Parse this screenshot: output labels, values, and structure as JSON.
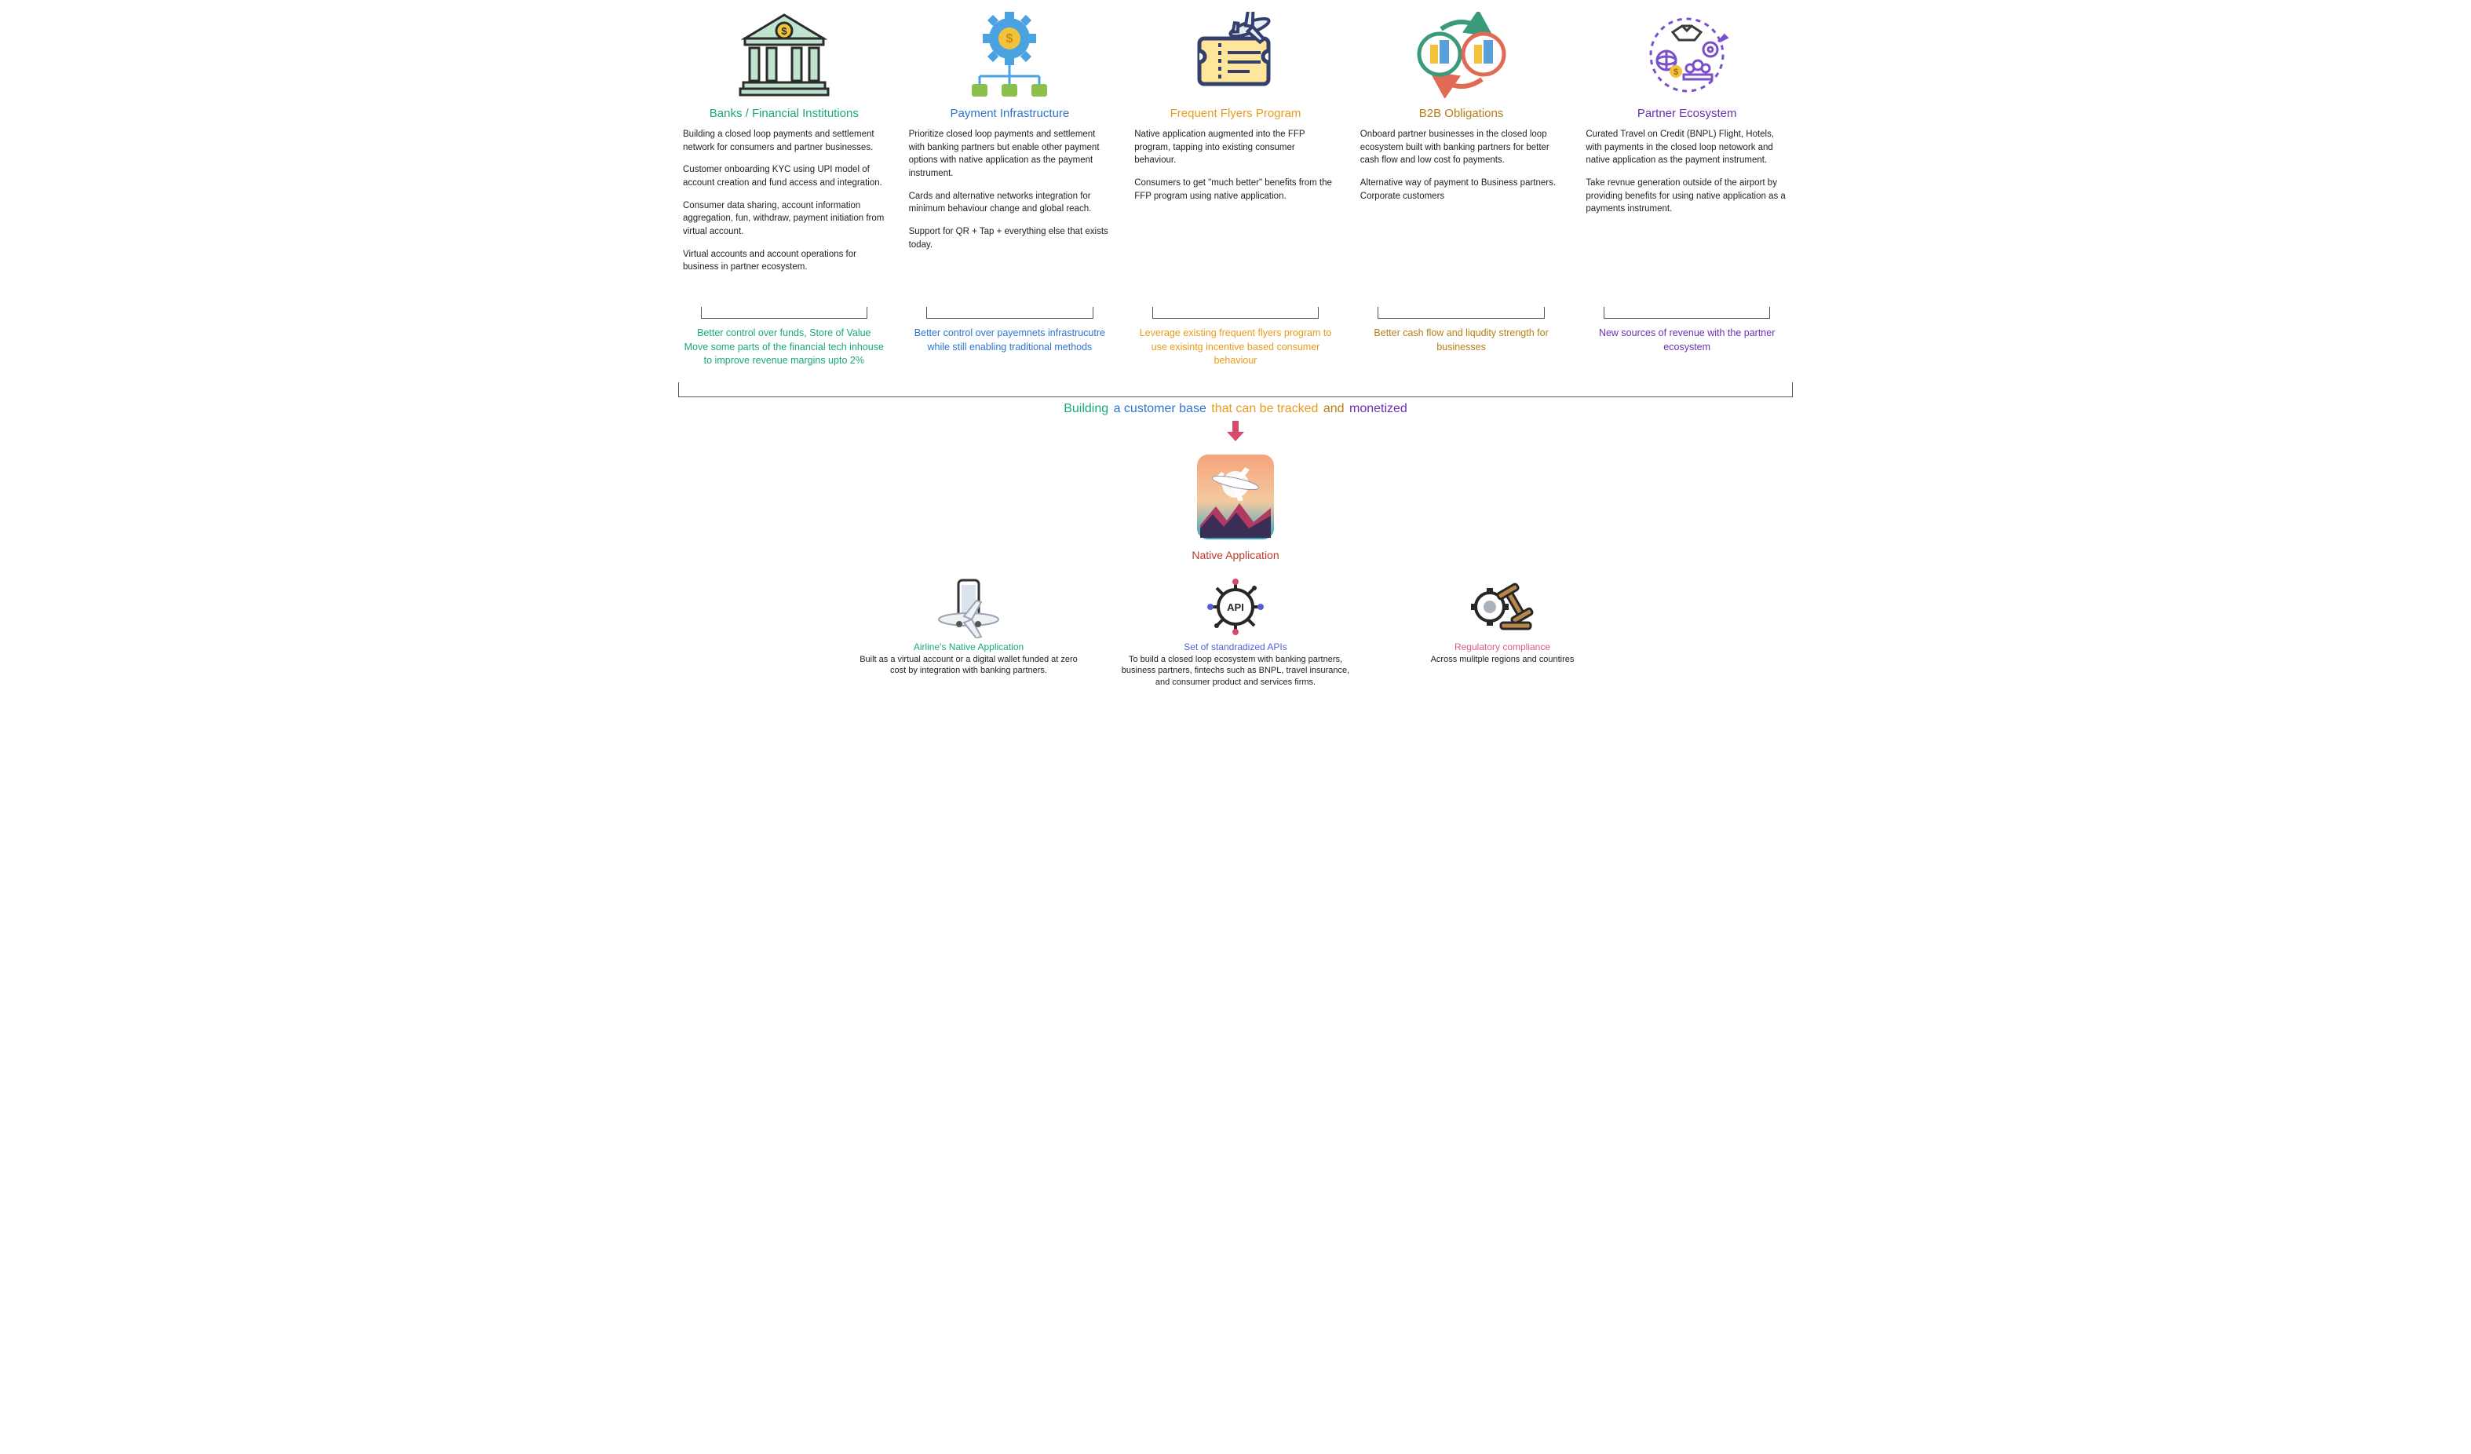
{
  "colors": {
    "c1": "#1aa87a",
    "c2": "#2f74d0",
    "c3": "#e89b1c",
    "c4": "#b57f16",
    "c5": "#6a2fb5",
    "native": "#c0392b",
    "api": "#5560d6",
    "reg": "#d85b88",
    "body": "#222222"
  },
  "columns": [
    {
      "title": "Banks / Financial Institutions",
      "paras": [
        "Building a closed loop payments and settlement network for consumers and partner businesses.",
        "Customer onboarding KYC using UPI model of account creation and fund access and integration.",
        "Consumer data sharing, account information aggregation, fun,  withdraw, payment initiation from virtual account.",
        "Virtual accounts and account operations for business in partner ecosystem."
      ],
      "summary": "Better control over funds, Store of Value\nMove some parts of the financial tech inhouse to improve revenue margins upto 2%"
    },
    {
      "title": "Payment Infrastructure",
      "paras": [
        "Prioritize closed loop payments and settlement with banking partners but enable other payment options with native application as the payment instrument.",
        "Cards and alternative networks integration for minimum behaviour change and global reach.",
        "Support for QR + Tap + everything else that exists today."
      ],
      "summary": "Better control over payemnets infrastrucutre while still enabling traditional methods"
    },
    {
      "title": "Frequent Flyers Program",
      "paras": [
        "Native application augmented  into the FFP program, tapping into existing consumer behaviour.",
        "Consumers to get \"much better\" benefits from the FFP program using native application."
      ],
      "summary": "Leverage existing frequent flyers program to use exisintg incentive based consumer behaviour"
    },
    {
      "title": "B2B Obligations",
      "paras": [
        "Onboard partner businesses in the closed loop ecosystem built with banking partners for better cash flow and low cost fo payments.",
        "Alternative way of payment to Business partners. Corporate customers"
      ],
      "summary": "Better cash flow and liqudity strength for businesses"
    },
    {
      "title": "Partner Ecosystem",
      "paras": [
        "Curated Travel on Credit (BNPL) Flight, Hotels, with payments in the closed loop netowork and native application as the payment instrument.",
        "Take revnue generation outside of the airport by providing benefits for using native application as a payments instrument."
      ],
      "summary": "New sources of revenue with the partner ecosystem"
    }
  ],
  "tagline": [
    {
      "t": "Building",
      "c": "#1aa87a"
    },
    {
      "t": " a customer base ",
      "c": "#2f74d0"
    },
    {
      "t": "that can be tracked",
      "c": "#e89b1c"
    },
    {
      "t": " and ",
      "c": "#b57f16"
    },
    {
      "t": "monetized",
      "c": "#6a2fb5"
    }
  ],
  "native_label": "Native Application",
  "bottom": [
    {
      "title": "Airline's Native Application",
      "color": "#1aa87a",
      "body": "Built as a virtual account or a digital wallet funded at zero cost by integration with banking partners."
    },
    {
      "title": "Set of standradized APIs",
      "color": "#5560d6",
      "body": "To build a closed loop ecosystem with banking partners, business partners, fintechs such as BNPL, travel insurance, and consumer product and services firms."
    },
    {
      "title": "Regulatory compliance",
      "color": "#d85b88",
      "body": "Across mulitple regions and countires"
    }
  ]
}
